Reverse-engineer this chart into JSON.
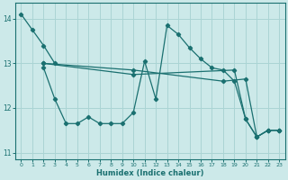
{
  "xlabel": "Humidex (Indice chaleur)",
  "background_color": "#cce9e9",
  "grid_color": "#aad4d4",
  "line_color": "#1a7070",
  "xlim": [
    -0.5,
    23.5
  ],
  "ylim": [
    10.85,
    14.35
  ],
  "yticks": [
    11,
    12,
    13,
    14
  ],
  "xticks": [
    0,
    1,
    2,
    3,
    4,
    5,
    6,
    7,
    8,
    9,
    10,
    11,
    12,
    13,
    14,
    15,
    16,
    17,
    18,
    19,
    20,
    21,
    22,
    23
  ],
  "series": [
    {
      "x": [
        0,
        1,
        2,
        3
      ],
      "y": [
        14.1,
        13.75,
        13.4,
        13.0
      ]
    },
    {
      "x": [
        2,
        3,
        4,
        5,
        6,
        7,
        8,
        9,
        10,
        11,
        12,
        13,
        14,
        15,
        16,
        17,
        18,
        19,
        20,
        21,
        22,
        23
      ],
      "y": [
        12.9,
        12.2,
        11.65,
        11.65,
        11.8,
        11.65,
        11.65,
        11.65,
        11.9,
        13.05,
        12.2,
        13.85,
        13.65,
        13.35,
        13.1,
        12.9,
        12.85,
        12.6,
        11.75,
        11.35,
        11.5,
        11.5
      ]
    },
    {
      "x": [
        2,
        10,
        18,
        20,
        21,
        22,
        23
      ],
      "y": [
        13.0,
        12.85,
        12.6,
        12.65,
        11.35,
        11.5,
        11.5
      ]
    },
    {
      "x": [
        2,
        10,
        19,
        20,
        21,
        22,
        23
      ],
      "y": [
        13.0,
        12.75,
        12.85,
        11.75,
        11.35,
        11.5,
        11.5
      ]
    }
  ]
}
